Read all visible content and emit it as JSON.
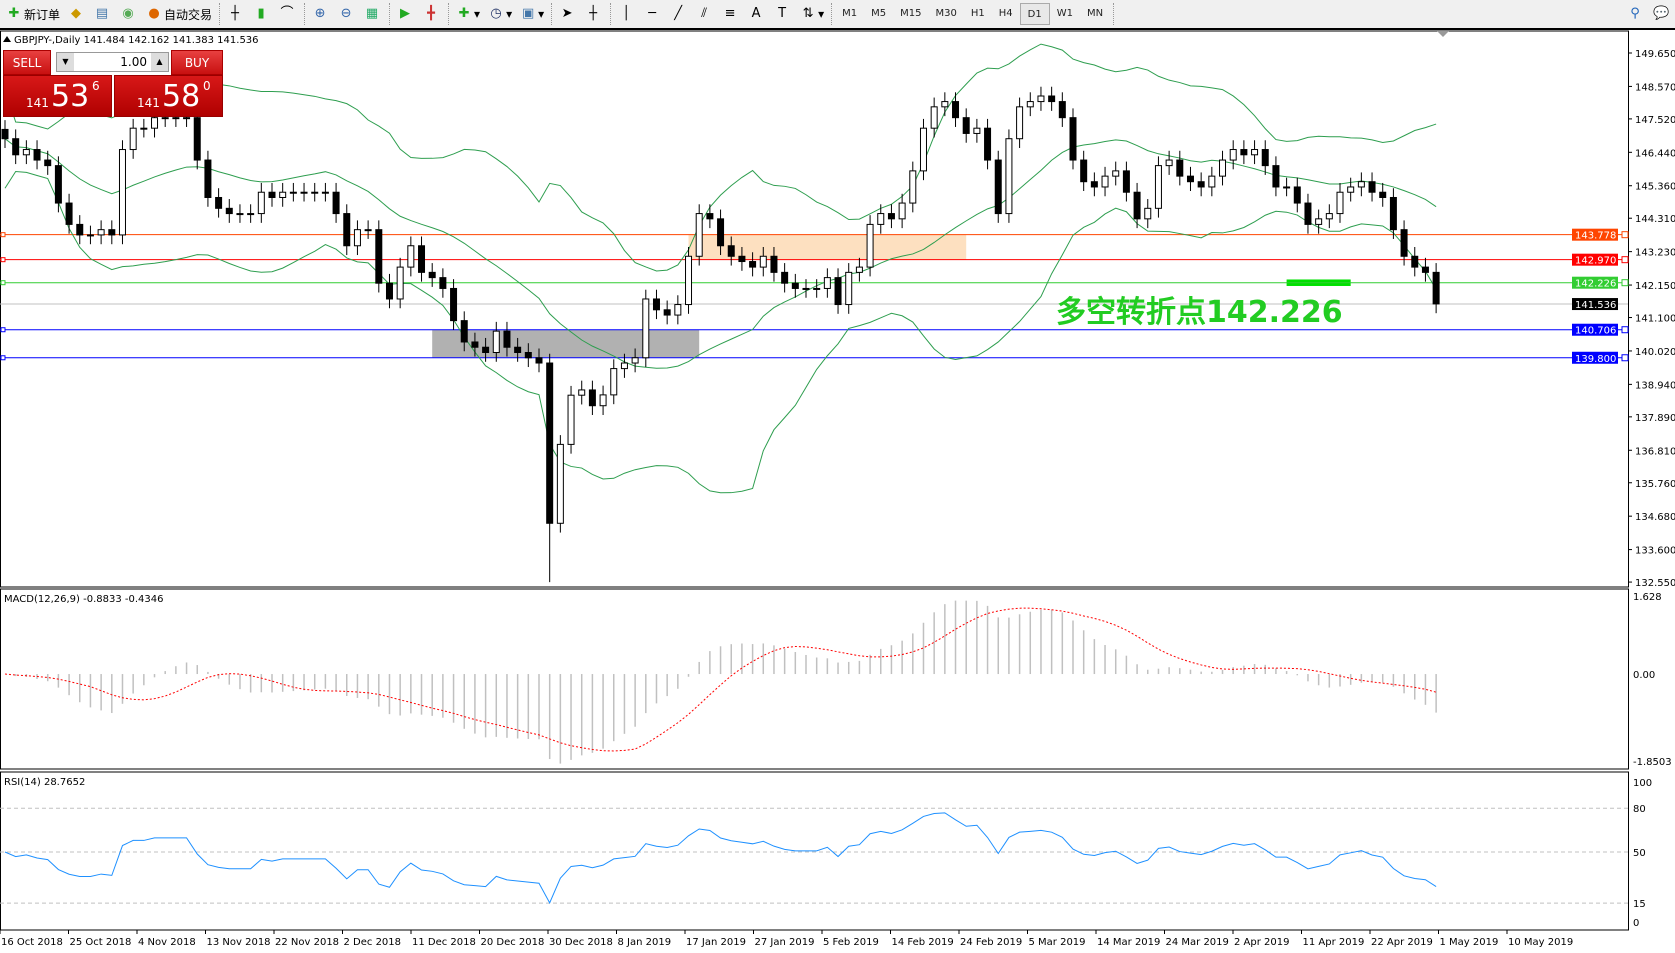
{
  "toolbar": {
    "new_order": "新订单",
    "auto_trading": "自动交易",
    "timeframes": [
      "M1",
      "M5",
      "M15",
      "M30",
      "H1",
      "H4",
      "D1",
      "W1",
      "MN"
    ],
    "active_timeframe": "D1"
  },
  "chart_header": "GBPJPY-,Daily  141.484 142.162 141.383 141.536",
  "trade_panel": {
    "sell_label": "SELL",
    "buy_label": "BUY",
    "lot": "1.00",
    "sell_big": "141",
    "sell_main": "53",
    "sell_sup": "6",
    "buy_big": "141",
    "buy_main": "58",
    "buy_sup": "0"
  },
  "annotation": "多空转折点142.226",
  "chart_data": {
    "type": "candlestick",
    "symbol": "GBPJPY-",
    "period": "Daily",
    "closes": [
      146.88,
      146.36,
      146.53,
      146.19,
      146.01,
      144.8,
      144.11,
      143.77,
      143.77,
      143.94,
      143.77,
      146.53,
      147.22,
      147.22,
      147.56,
      147.56,
      147.56,
      147.56,
      146.19,
      144.98,
      144.63,
      144.46,
      144.46,
      144.46,
      145.15,
      144.98,
      145.15,
      145.15,
      145.15,
      145.15,
      145.15,
      144.46,
      143.42,
      143.94,
      143.94,
      142.21,
      141.7,
      142.73,
      143.42,
      142.56,
      142.39,
      142.04,
      141.0,
      140.31,
      140.14,
      139.97,
      140.66,
      140.14,
      139.97,
      139.8,
      139.63,
      134.45,
      137.0,
      138.59,
      138.76,
      138.25,
      138.6,
      139.45,
      139.63,
      139.8,
      141.7,
      141.35,
      141.18,
      141.52,
      143.08,
      144.46,
      144.29,
      143.42,
      143.08,
      142.91,
      142.73,
      143.08,
      142.56,
      142.21,
      142.04,
      142.04,
      142.04,
      142.39,
      141.52,
      142.56,
      142.73,
      144.11,
      144.46,
      144.29,
      144.8,
      145.84,
      147.22,
      147.91,
      148.08,
      147.56,
      147.05,
      147.22,
      146.19,
      144.46,
      146.88,
      147.91,
      148.08,
      148.26,
      148.08,
      147.56,
      146.19,
      145.49,
      145.32,
      145.67,
      145.84,
      145.15,
      144.29,
      144.63,
      146.01,
      146.19,
      145.67,
      145.49,
      145.32,
      145.67,
      146.19,
      146.53,
      146.36,
      146.53,
      146.01,
      145.32,
      145.32,
      144.8,
      144.11,
      144.29,
      144.46,
      145.15,
      145.32,
      145.49,
      145.15,
      144.98,
      143.94,
      143.08,
      142.73,
      142.56,
      141.54
    ],
    "price_ticks": [
      "149.650",
      "148.570",
      "147.520",
      "146.440",
      "145.360",
      "144.310",
      "143.230",
      "142.150",
      "141.100",
      "140.020",
      "138.940",
      "137.890",
      "136.810",
      "135.760",
      "134.680",
      "133.600",
      "132.550"
    ],
    "levels": [
      {
        "price": "143.778",
        "color": "#ff4500"
      },
      {
        "price": "142.970",
        "color": "#ff0000"
      },
      {
        "price": "142.226",
        "color": "#32cd32"
      },
      {
        "price": "141.536",
        "color": "#000000"
      },
      {
        "price": "140.706",
        "color": "#0000ff"
      },
      {
        "price": "139.800",
        "color": "#0000ff"
      }
    ],
    "zones": [
      {
        "top": 143.778,
        "bottom": 142.97,
        "color": "#fde0c0"
      },
      {
        "top": 140.706,
        "bottom": 139.8,
        "color": "#a9a9a9"
      },
      {
        "top": 142.33,
        "bottom": 142.12,
        "color": "#00e000"
      }
    ],
    "bands_color": "#2e9e4f",
    "x_labels": [
      "16 Oct 2018",
      "25 Oct 2018",
      "4 Nov 2018",
      "13 Nov 2018",
      "22 Nov 2018",
      "2 Dec 2018",
      "11 Dec 2018",
      "20 Dec 2018",
      "30 Dec 2018",
      "8 Jan 2019",
      "17 Jan 2019",
      "27 Jan 2019",
      "5 Feb 2019",
      "14 Feb 2019",
      "24 Feb 2019",
      "5 Mar 2019",
      "14 Mar 2019",
      "24 Mar 2019",
      "2 Apr 2019",
      "11 Apr 2019",
      "22 Apr 2019",
      "1 May 2019",
      "10 May 2019"
    ],
    "macd": {
      "label": "MACD(12,26,9) -0.8833 -0.4346",
      "ticks": [
        "1.628",
        "0.00",
        "-1.8503"
      ],
      "max": 1.628,
      "min": -1.8503
    },
    "rsi": {
      "label": "RSI(14) 28.7652",
      "ticks": [
        "100",
        "80",
        "50",
        "15",
        "0"
      ]
    }
  }
}
